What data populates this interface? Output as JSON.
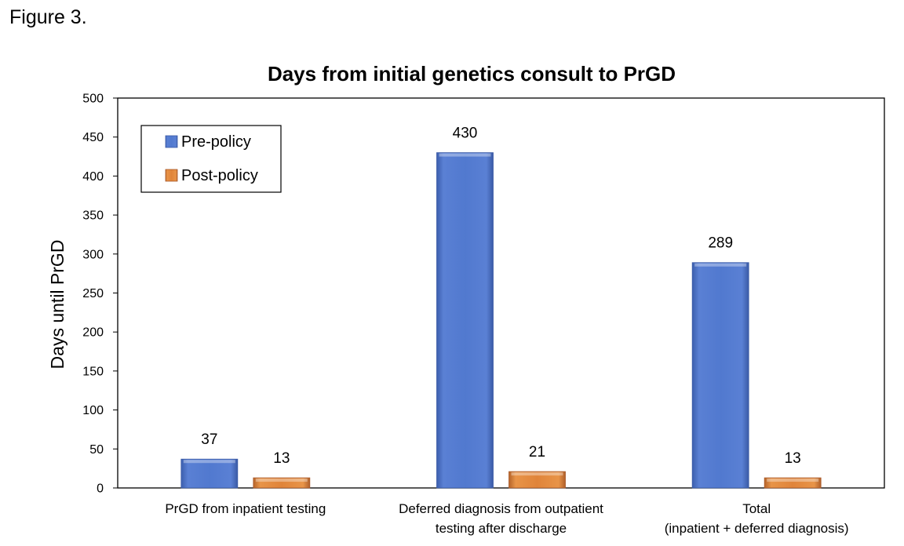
{
  "figure_label": "Figure 3.",
  "chart_data": {
    "type": "bar",
    "title": "Days from initial genetics consult to PrGD",
    "xlabel": "",
    "ylabel": "Days until PrGD",
    "ylim": [
      0,
      500
    ],
    "yticks": [
      0,
      50,
      100,
      150,
      200,
      250,
      300,
      350,
      400,
      450,
      500
    ],
    "categories": [
      [
        "PrGD from inpatient testing"
      ],
      [
        "Deferred diagnosis from outpatient",
        "testing after discharge"
      ],
      [
        "Total",
        "(inpatient + deferred diagnosis)"
      ]
    ],
    "series": [
      {
        "name": "Pre-policy",
        "values": [
          37,
          430,
          289
        ],
        "color": "#4f76cc"
      },
      {
        "name": "Post-policy",
        "values": [
          13,
          21,
          13
        ],
        "color": "#e0843a"
      }
    ],
    "legend": "top-left",
    "grid": false,
    "data_labels": true
  }
}
